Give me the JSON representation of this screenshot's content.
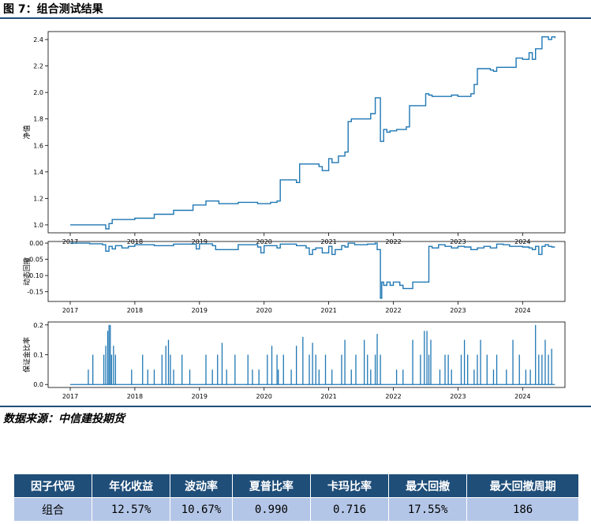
{
  "figure": {
    "title": "图 7：组合测试结果",
    "source": "数据来源：中信建投期货"
  },
  "colors": {
    "line": "#1f77b4",
    "rule": "#1f4e79",
    "header_bg": "#1f4e79",
    "cell_bg": "#b4c6e7"
  },
  "chart_data": [
    {
      "type": "line",
      "ylabel": "净值",
      "ylim": [
        0.94,
        2.46
      ],
      "xlim": [
        2017.0,
        2024.72
      ],
      "yticks": [
        "1.0",
        "1.2",
        "1.4",
        "1.6",
        "1.8",
        "2.0",
        "2.2",
        "2.4"
      ],
      "xticks": [
        "2017",
        "2018",
        "2019",
        "2020",
        "2021",
        "2022",
        "2023",
        "2024"
      ],
      "series": [
        {
          "x": [
            2017.0,
            2017.2,
            2017.5,
            2017.55,
            2017.6,
            2017.65,
            2017.8,
            2018.0,
            2018.3,
            2018.6,
            2018.9,
            2019.1,
            2019.3,
            2019.6,
            2019.9,
            2020.1,
            2020.2,
            2020.25,
            2020.5,
            2020.55,
            2020.85,
            2020.9,
            2021.0,
            2021.05,
            2021.15,
            2021.25,
            2021.3,
            2021.35,
            2021.65,
            2021.72,
            2021.8,
            2021.85,
            2021.9,
            2021.95,
            2022.05,
            2022.2,
            2022.25,
            2022.5,
            2022.55,
            2022.6,
            2022.9,
            2023.0,
            2023.2,
            2023.25,
            2023.3,
            2023.5,
            2023.55,
            2023.6,
            2023.9,
            2024.0,
            2024.1,
            2024.15,
            2024.2,
            2024.25,
            2024.3,
            2024.4,
            2024.45,
            2024.5
          ],
          "y": [
            1.0,
            1.0,
            1.0,
            0.97,
            1.01,
            1.04,
            1.04,
            1.05,
            1.08,
            1.11,
            1.15,
            1.18,
            1.16,
            1.17,
            1.16,
            1.17,
            1.18,
            1.34,
            1.32,
            1.46,
            1.44,
            1.41,
            1.5,
            1.47,
            1.52,
            1.55,
            1.78,
            1.8,
            1.84,
            1.96,
            1.63,
            1.72,
            1.7,
            1.71,
            1.72,
            1.74,
            1.9,
            1.99,
            1.98,
            1.97,
            1.98,
            1.97,
            1.99,
            2.06,
            2.18,
            2.17,
            2.16,
            2.19,
            2.26,
            2.25,
            2.3,
            2.25,
            2.33,
            2.33,
            2.42,
            2.4,
            2.42,
            2.41
          ]
        }
      ]
    },
    {
      "type": "line",
      "ylabel": "动态回撤",
      "ylim": [
        -0.18,
        0.005
      ],
      "xlim": [
        2017.0,
        2024.72
      ],
      "yticks": [
        "0.00",
        "-0.05",
        "-0.10",
        "-0.15"
      ],
      "xticks": [
        "2017",
        "2018",
        "2019",
        "2020",
        "2021",
        "2022",
        "2023",
        "2024"
      ],
      "series": [
        {
          "x": [
            2017.0,
            2017.3,
            2017.5,
            2017.55,
            2017.6,
            2017.65,
            2017.7,
            2017.8,
            2017.9,
            2018.0,
            2018.3,
            2018.6,
            2018.95,
            2019.0,
            2019.2,
            2019.25,
            2019.6,
            2019.9,
            2019.95,
            2020.0,
            2020.2,
            2020.25,
            2020.5,
            2020.65,
            2020.7,
            2020.75,
            2020.8,
            2020.9,
            2021.0,
            2021.05,
            2021.1,
            2021.2,
            2021.25,
            2021.3,
            2021.4,
            2021.6,
            2021.72,
            2021.75,
            2021.8,
            2021.82,
            2021.85,
            2021.9,
            2021.95,
            2022.0,
            2022.1,
            2022.15,
            2022.2,
            2022.3,
            2022.4,
            2022.5,
            2022.55,
            2022.6,
            2022.7,
            2022.8,
            2022.9,
            2023.0,
            2023.1,
            2023.2,
            2023.3,
            2023.4,
            2023.5,
            2023.6,
            2023.7,
            2023.8,
            2024.0,
            2024.1,
            2024.15,
            2024.2,
            2024.25,
            2024.3,
            2024.35,
            2024.4,
            2024.45,
            2024.5
          ],
          "y": [
            0.0,
            -0.002,
            -0.005,
            -0.025,
            -0.01,
            -0.018,
            -0.008,
            -0.015,
            -0.01,
            -0.005,
            -0.008,
            -0.003,
            -0.018,
            -0.002,
            -0.008,
            -0.02,
            -0.005,
            -0.012,
            -0.03,
            -0.008,
            -0.015,
            -0.003,
            -0.008,
            -0.015,
            -0.035,
            -0.02,
            -0.015,
            -0.03,
            -0.01,
            -0.035,
            -0.02,
            -0.008,
            -0.012,
            0.0,
            -0.005,
            -0.003,
            0.0,
            -0.02,
            -0.17,
            -0.12,
            -0.13,
            -0.12,
            -0.13,
            -0.12,
            -0.13,
            -0.14,
            -0.14,
            -0.12,
            -0.12,
            -0.12,
            -0.01,
            -0.015,
            -0.005,
            -0.01,
            -0.015,
            -0.01,
            -0.012,
            -0.02,
            -0.015,
            -0.01,
            -0.015,
            -0.003,
            -0.005,
            -0.01,
            -0.012,
            -0.015,
            -0.02,
            -0.01,
            -0.035,
            -0.01,
            -0.005,
            -0.01,
            -0.012,
            -0.012
          ]
        }
      ]
    },
    {
      "type": "bar",
      "ylabel": "保证金比率",
      "ylim": [
        -0.01,
        0.21
      ],
      "xlim": [
        2017.0,
        2024.72
      ],
      "yticks": [
        "0.2",
        "0.1",
        "0.0"
      ],
      "xticks": [
        "2017",
        "2018",
        "2019",
        "2020",
        "2021",
        "2022",
        "2023",
        "2024"
      ],
      "series": [
        {
          "x": [
            2017.28,
            2017.35,
            2017.52,
            2017.55,
            2017.58,
            2017.6,
            2017.62,
            2017.64,
            2017.67,
            2017.7,
            2017.95,
            2018.12,
            2018.2,
            2018.3,
            2018.42,
            2018.48,
            2018.52,
            2018.55,
            2018.6,
            2018.73,
            2018.85,
            2019.1,
            2019.2,
            2019.28,
            2019.35,
            2019.42,
            2019.55,
            2019.75,
            2019.82,
            2019.92,
            2020.05,
            2020.12,
            2020.2,
            2020.22,
            2020.3,
            2020.42,
            2020.5,
            2020.6,
            2020.7,
            2020.75,
            2020.8,
            2020.85,
            2020.95,
            2021.05,
            2021.2,
            2021.25,
            2021.35,
            2021.42,
            2021.55,
            2021.6,
            2021.65,
            2021.72,
            2021.75,
            2021.8,
            2022.05,
            2022.15,
            2022.3,
            2022.42,
            2022.48,
            2022.52,
            2022.55,
            2022.58,
            2022.72,
            2022.8,
            2022.85,
            2022.9,
            2023.05,
            2023.1,
            2023.15,
            2023.25,
            2023.3,
            2023.35,
            2023.45,
            2023.55,
            2023.6,
            2023.75,
            2023.85,
            2023.95,
            2024.05,
            2024.12,
            2024.2,
            2024.25,
            2024.3,
            2024.35,
            2024.4,
            2024.45
          ],
          "y": [
            0.05,
            0.1,
            0.1,
            0.13,
            0.18,
            0.2,
            0.2,
            0.1,
            0.13,
            0.1,
            0.05,
            0.1,
            0.05,
            0.05,
            0.1,
            0.13,
            0.15,
            0.1,
            0.05,
            0.1,
            0.05,
            0.1,
            0.05,
            0.1,
            0.14,
            0.05,
            0.1,
            0.1,
            0.05,
            0.05,
            0.1,
            0.13,
            0.1,
            0.05,
            0.1,
            0.05,
            0.13,
            0.16,
            0.1,
            0.14,
            0.1,
            0.05,
            0.1,
            0.05,
            0.1,
            0.15,
            0.05,
            0.1,
            0.15,
            0.1,
            0.05,
            0.1,
            0.17,
            0.1,
            0.05,
            0.05,
            0.15,
            0.1,
            0.18,
            0.18,
            0.1,
            0.15,
            0.05,
            0.1,
            0.1,
            0.05,
            0.1,
            0.15,
            0.1,
            0.05,
            0.1,
            0.15,
            0.1,
            0.05,
            0.1,
            0.05,
            0.15,
            0.1,
            0.05,
            0.05,
            0.2,
            0.1,
            0.1,
            0.15,
            0.1,
            0.12
          ]
        }
      ]
    }
  ],
  "table": {
    "headers": [
      "因子代码",
      "年化收益",
      "波动率",
      "夏普比率",
      "卡玛比率",
      "最大回撤",
      "最大回撤周期"
    ],
    "row": [
      "组合",
      "12.57%",
      "10.67%",
      "0.990",
      "0.716",
      "17.55%",
      "186"
    ]
  }
}
